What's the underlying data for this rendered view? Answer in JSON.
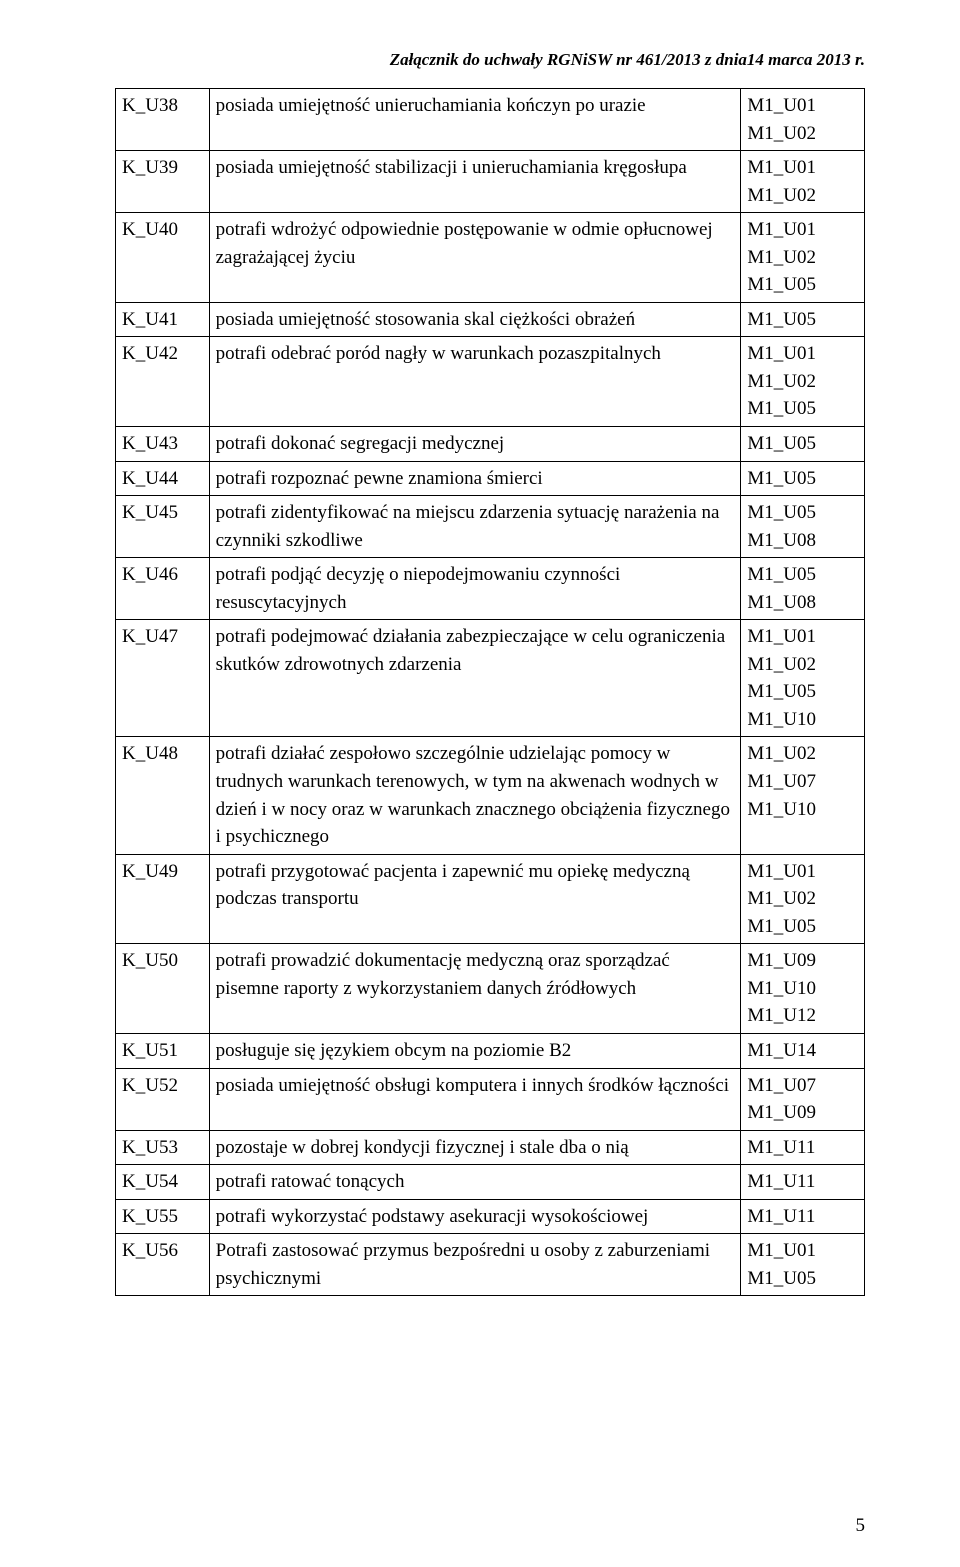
{
  "header": "Załącznik do uchwały RGNiSW nr 461/2013 z dnia14 marca 2013 r.",
  "page_number": "5",
  "rows": [
    {
      "code": "K_U38",
      "desc": "posiada umiejętność unieruchamiania kończyn po urazie",
      "refs": "M1_U01\nM1_U02"
    },
    {
      "code": "K_U39",
      "desc": "posiada umiejętność stabilizacji i unieruchamiania kręgosłupa",
      "refs": "M1_U01\nM1_U02"
    },
    {
      "code": "K_U40",
      "desc": "potrafi wdrożyć odpowiednie postępowanie w odmie opłucnowej zagrażającej życiu",
      "refs": "M1_U01\nM1_U02\nM1_U05"
    },
    {
      "code": "K_U41",
      "desc": "posiada umiejętność stosowania skal ciężkości obrażeń",
      "refs": "M1_U05\n "
    },
    {
      "code": "K_U42",
      "desc": "potrafi odebrać poród nagły w warunkach pozaszpitalnych",
      "refs": "M1_U01\nM1_U02\nM1_U05"
    },
    {
      "code": "K_U43",
      "desc": "potrafi dokonać segregacji medycznej",
      "refs": "M1_U05\n "
    },
    {
      "code": "K_U44",
      "desc": "potrafi rozpoznać pewne znamiona śmierci",
      "refs": "M1_U05\n "
    },
    {
      "code": "K_U45",
      "desc": "potrafi zidentyfikować na miejscu zdarzenia sytuację narażenia na czynniki szkodliwe",
      "refs": "M1_U05\nM1_U08\n "
    },
    {
      "code": "K_U46",
      "desc": "potrafi podjąć decyzję o niepodejmowaniu czynności resuscytacyjnych",
      "refs": "M1_U05\nM1_U08"
    },
    {
      "code": "K_U47",
      "desc": "potrafi podejmować działania zabezpieczające w celu ograniczenia skutków zdrowotnych zdarzenia",
      "refs": "M1_U01\nM1_U02\nM1_U05\nM1_U10"
    },
    {
      "code": "K_U48",
      "desc": "potrafi działać zespołowo szczególnie udzielając pomocy w trudnych warunkach terenowych, w tym na akwenach wodnych w dzień i w nocy oraz w warunkach znacznego obciążenia fizycznego i psychicznego",
      "refs": "M1_U02\nM1_U07\nM1_U10"
    },
    {
      "code": "K_U49",
      "desc": "potrafi przygotować pacjenta i zapewnić mu opiekę medyczną podczas transportu",
      "refs": "M1_U01\nM1_U02\nM1_U05"
    },
    {
      "code": "K_U50",
      "desc": "potrafi prowadzić dokumentację medyczną oraz sporządzać pisemne raporty z wykorzystaniem danych źródłowych",
      "refs": "M1_U09\nM1_U10\nM1_U12"
    },
    {
      "code": "K_U51",
      "desc": "posługuje się językiem obcym na poziomie B2",
      "refs": "M1_U14"
    },
    {
      "code": "K_U52",
      "desc": "posiada umiejętność obsługi komputera i innych środków łączności",
      "refs": "M1_U07\nM1_U09"
    },
    {
      "code": "K_U53",
      "desc": "pozostaje w dobrej kondycji fizycznej i stale dba o nią",
      "refs": "M1_U11"
    },
    {
      "code": "K_U54",
      "desc": "potrafi ratować tonących",
      "refs": "M1_U11"
    },
    {
      "code": "K_U55",
      "desc": "potrafi wykorzystać podstawy asekuracji wysokościowej",
      "refs": "M1_U11"
    },
    {
      "code": "K_U56",
      "desc": "Potrafi zastosować przymus bezpośredni u osoby z zaburzeniami psychicznymi",
      "refs": "M1_U01\nM1_U05"
    }
  ]
}
